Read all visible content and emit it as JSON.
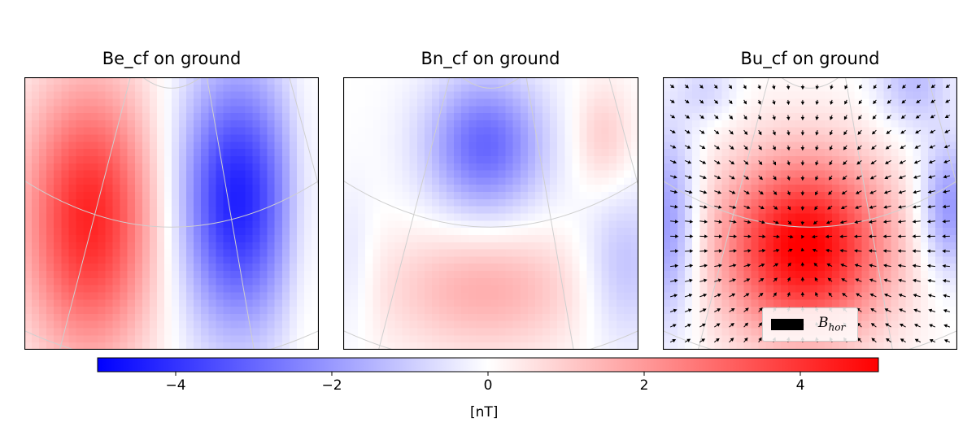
{
  "chart_data": [
    {
      "type": "heatmap",
      "title": "Be_cf on ground",
      "grid": true,
      "field": {
        "min": -4.3,
        "max": 4.2,
        "pattern": "positive (red) lobe on left-center, negative (blue) lobe on right-center"
      }
    },
    {
      "type": "heatmap",
      "title": "Bn_cf on ground",
      "grid": true,
      "field": {
        "min": -3.0,
        "max": 1.8,
        "pattern": "negative (blue) lobe top-center, weak positive top-right, positive (red) lobe bottom-center"
      }
    },
    {
      "type": "heatmap",
      "title": "Bu_cf on ground",
      "grid": true,
      "quiver": true,
      "legend": {
        "placement": "bottom-right",
        "entries": [
          "B_hor"
        ]
      },
      "field": {
        "min": -2.5,
        "max": 5.0,
        "pattern": "strong positive (red) lobe center-bottom, negative (blue) lobes at left and right edges"
      }
    }
  ],
  "colorbar": {
    "vmin": -5,
    "vmax": 5,
    "cmap": [
      "#0000ff",
      "#ffffff",
      "#ff0000"
    ],
    "ticks": [
      {
        "value": -4,
        "label": "−4"
      },
      {
        "value": -2,
        "label": "−2"
      },
      {
        "value": 0,
        "label": "0"
      },
      {
        "value": 2,
        "label": "2"
      },
      {
        "value": 4,
        "label": "4"
      }
    ],
    "label": "[nT]"
  },
  "legend": {
    "symbol": "B",
    "subscript": "hor"
  }
}
